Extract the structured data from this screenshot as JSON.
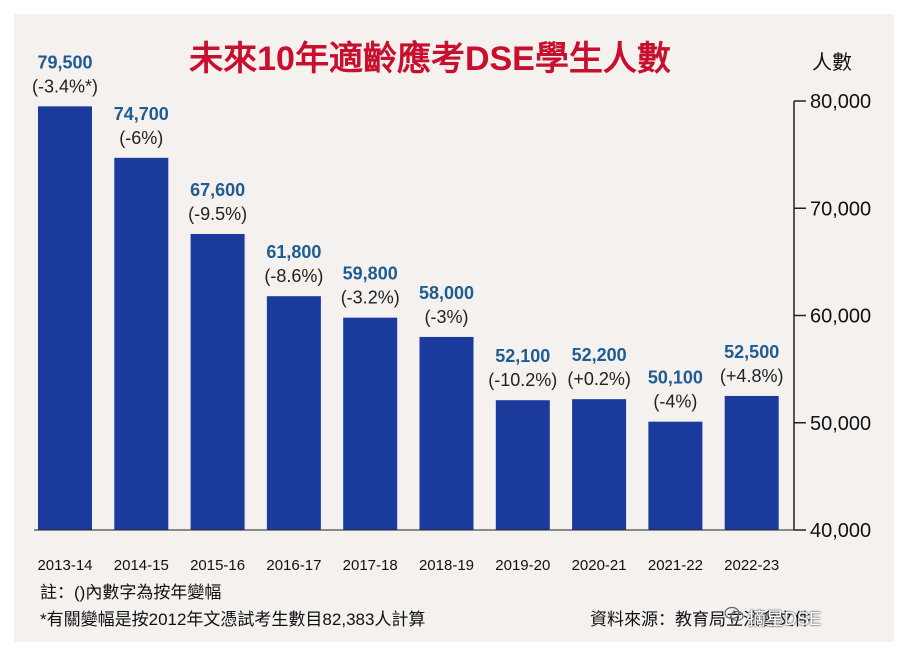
{
  "colors": {
    "bar": "#1a3b9c",
    "value_label": "#1e5c92",
    "title": "#c8102e",
    "panel": "#f4f1ee"
  },
  "chart_data": {
    "type": "bar",
    "title": "未來10年適齡應考DSE學生人數",
    "ylabel": "人數",
    "ylim": [
      40000,
      80000
    ],
    "yticks": [
      40000,
      50000,
      60000,
      70000,
      80000
    ],
    "ytick_labels": [
      "40,000",
      "50,000",
      "60,000",
      "70,000",
      "80,000"
    ],
    "axis_position": "right",
    "grid": false,
    "categories": [
      "2013-14",
      "2014-15",
      "2015-16",
      "2016-17",
      "2017-18",
      "2018-19",
      "2019-20",
      "2020-21",
      "2021-22",
      "2022-23"
    ],
    "values": [
      79500,
      74700,
      67600,
      61800,
      59800,
      58000,
      52100,
      52200,
      50100,
      52500
    ],
    "value_labels": [
      "79,500",
      "74,700",
      "67,600",
      "61,800",
      "59,800",
      "58,000",
      "52,100",
      "52,200",
      "50,100",
      "52,500"
    ],
    "change_labels": [
      "(-3.4%*)",
      "(-6%)",
      "(-9.5%)",
      "(-8.6%)",
      "(-3.2%)",
      "(-3%)",
      "(-10.2%)",
      "(+0.2%)",
      "(-4%)",
      "(+4.8%)"
    ]
  },
  "notes": {
    "note1": "註：()內數字為按年變幅",
    "note2": "*有關變幅是按2012年文憑試考生數目82,383人計算",
    "source": "資料來源：教育局立法會文件",
    "watermark": "摘星DSE"
  }
}
